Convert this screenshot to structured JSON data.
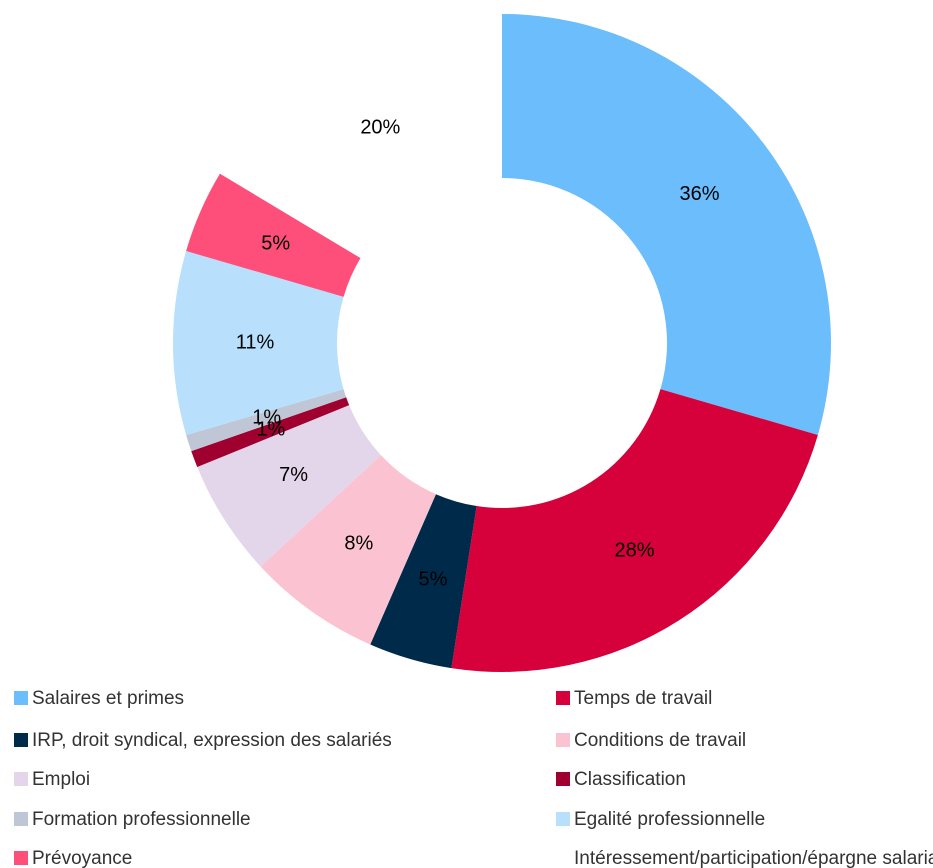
{
  "chart_data": {
    "type": "donut",
    "categories": [
      "Salaires et primes",
      "Temps de travail",
      "IRP, droit syndical, expression des salariés",
      "Conditions de travail",
      "Emploi",
      "Classification",
      "Formation professionnelle",
      "Egalité professionnelle",
      "Prévoyance",
      "Intéressement/participation/épargne salariale"
    ],
    "values": [
      36,
      28,
      5,
      8,
      7,
      1,
      1,
      11,
      5,
      20
    ],
    "value_labels": [
      "36%",
      "28%",
      "5%",
      "8%",
      "7%",
      "1%",
      "1%",
      "11%",
      "5%",
      "20%"
    ],
    "colors": [
      "#6bbdfc",
      "#d6003a",
      "#002a4a",
      "#fbc3d1",
      "#e4d6ea",
      "#a00030",
      "#bfc7d6",
      "#b8e0fd",
      "#fe4f7a",
      "#ffffff"
    ],
    "legend": "bottom"
  }
}
